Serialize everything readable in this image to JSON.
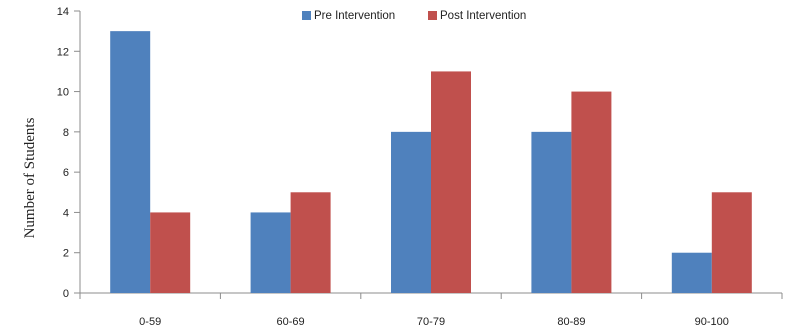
{
  "chart_data": {
    "type": "bar",
    "title": "",
    "xlabel": "",
    "ylabel": "Number of Students",
    "categories": [
      "0-59",
      "60-69",
      "70-79",
      "80-89",
      "90-100"
    ],
    "series": [
      {
        "name": "Pre Intervention",
        "values": [
          13,
          4,
          8,
          8,
          2
        ],
        "color": "#4f81bd"
      },
      {
        "name": "Post Intervention",
        "values": [
          4,
          5,
          11,
          10,
          5
        ],
        "color": "#c0504d"
      }
    ],
    "ylim": [
      0,
      14
    ],
    "yticks": [
      0,
      2,
      4,
      6,
      8,
      10,
      12,
      14
    ],
    "grid": false,
    "legend_position": "top-center"
  }
}
